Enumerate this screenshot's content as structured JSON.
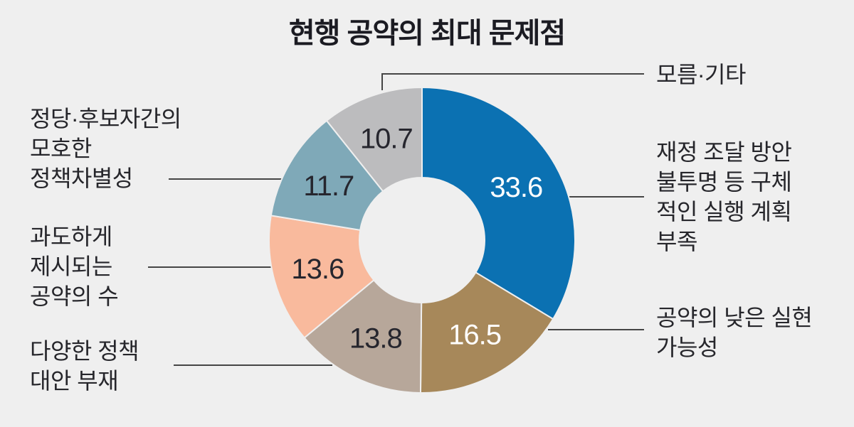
{
  "title": "현행 공약의 최대 문제점",
  "chart_data": {
    "type": "pie",
    "subtype": "donut",
    "unit": "%",
    "title": "현행 공약의 최대 문제점",
    "legend_position": "labels-with-leader-lines",
    "segments": [
      {
        "label": "재정 조달 방안\n불투명 등 구체\n적인 실행 계획\n부족",
        "value": 33.6,
        "value_text": "33.6",
        "color": "#0b71b2",
        "value_color": "#ffffff"
      },
      {
        "label": "공약의 낮은 실현\n가능성",
        "value": 16.5,
        "value_text": "16.5",
        "color": "#a7885a",
        "value_color": "#ffffff"
      },
      {
        "label": "다양한 정책\n대안 부재",
        "value": 13.8,
        "value_text": "13.8",
        "color": "#b7a79a",
        "value_color": "#26262e"
      },
      {
        "label": "과도하게\n제시되는\n공약의 수",
        "value": 13.6,
        "value_text": "13.6",
        "color": "#f9ba9d",
        "value_color": "#26262e"
      },
      {
        "label": "정당·후보자간의\n모호한\n정책차별성",
        "value": 11.7,
        "value_text": "11.7",
        "color": "#7fa9b8",
        "value_color": "#26262e"
      },
      {
        "label": "모름·기타",
        "value": 10.7,
        "value_text": "10.7",
        "color": "#bcbcbe",
        "value_color": "#26262e"
      }
    ],
    "colors": {
      "background": "#efefef",
      "leader_line": "#454545",
      "label_text": "#26262b",
      "title_text": "#1b1b22"
    }
  }
}
